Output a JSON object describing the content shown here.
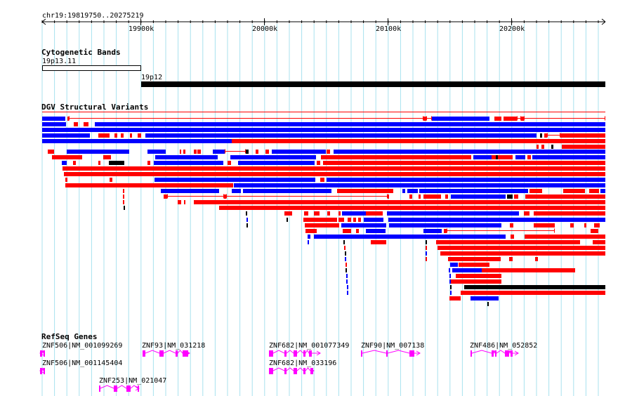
{
  "ruler": {
    "region_label": "chr19:19819750..20275219",
    "ticks": [
      "19900k",
      "20000k",
      "20100k",
      "20200k"
    ]
  },
  "tracks": {
    "cytoband": {
      "title": "Cytogenetic Bands",
      "bands": [
        {
          "name": "19p13.11",
          "stain": "gneg"
        },
        {
          "name": "19p12",
          "stain": "gvar"
        }
      ]
    },
    "dgv": {
      "title": "DGV Structural Variants",
      "colors": {
        "loss": "#ff0000",
        "gain": "#0000ff",
        "complex": "#000000"
      }
    },
    "genes": {
      "title": "RefSeq Genes",
      "color": "#ff00ff",
      "labels": [
        "ZNF506|NM_001099269",
        "ZNF93|NM_031218",
        "ZNF682|NM_001077349",
        "ZNF90|NM_007138",
        "ZNF486|NM_052852",
        "ZNF506|NM_001145404",
        "ZNF682|NM_033196",
        "ZNF253|NM_021047"
      ]
    }
  }
}
